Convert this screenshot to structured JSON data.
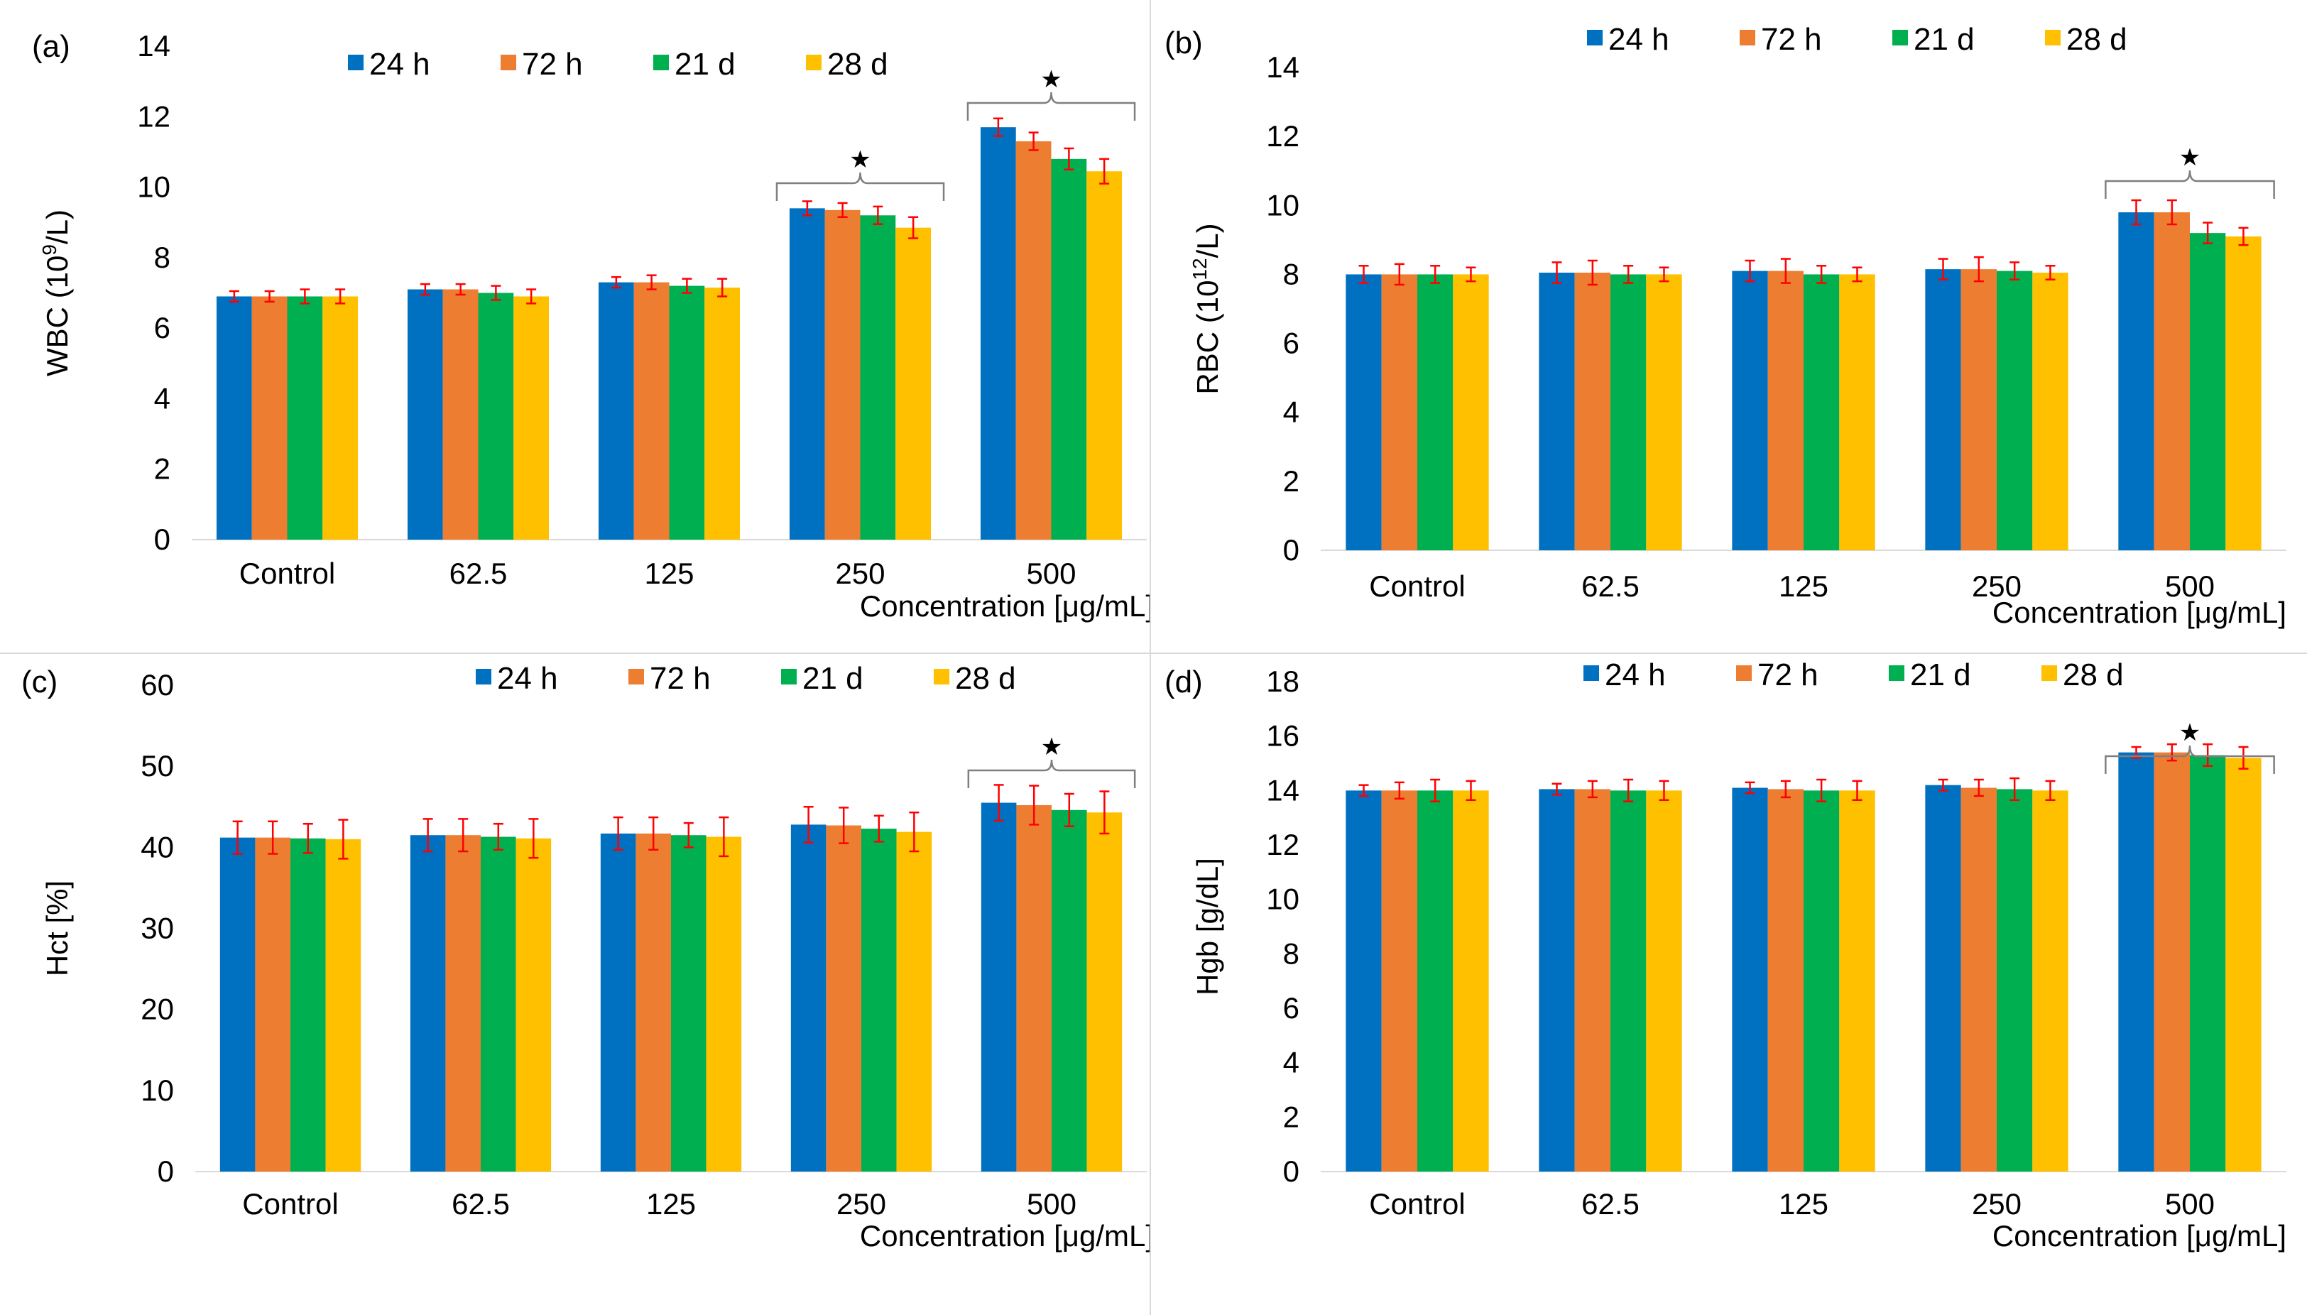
{
  "chart_data": [
    {
      "type": "bar",
      "panel_label": "(a)",
      "ylabel": "WBC (10",
      "ylabel_sup": "9",
      "ylabel_suffix": "/L)",
      "xlabel": "Concentration [μg/mL]",
      "ylim": [
        0,
        14
      ],
      "yticks": [
        0,
        2,
        4,
        6,
        8,
        10,
        12,
        14
      ],
      "categories": [
        "Control",
        "62.5",
        "125",
        "250",
        "500"
      ],
      "series": [
        {
          "name": "24 h",
          "color": "#0070C0",
          "values": [
            6.9,
            7.1,
            7.3,
            9.4,
            11.7
          ],
          "errors": [
            0.15,
            0.15,
            0.15,
            0.2,
            0.25
          ]
        },
        {
          "name": "72 h",
          "color": "#ED7D31",
          "values": [
            6.9,
            7.1,
            7.3,
            9.35,
            11.3
          ],
          "errors": [
            0.15,
            0.15,
            0.2,
            0.2,
            0.25
          ]
        },
        {
          "name": "21 d",
          "color": "#00B050",
          "values": [
            6.9,
            7.0,
            7.2,
            9.2,
            10.8
          ],
          "errors": [
            0.2,
            0.2,
            0.2,
            0.25,
            0.3
          ]
        },
        {
          "name": "28 d",
          "color": "#FFC000",
          "values": [
            6.9,
            6.9,
            7.15,
            8.85,
            10.45
          ],
          "errors": [
            0.2,
            0.2,
            0.25,
            0.3,
            0.35
          ]
        }
      ],
      "significance": [
        {
          "category_index": 3,
          "marker": "★"
        },
        {
          "category_index": 4,
          "marker": "★"
        }
      ]
    },
    {
      "type": "bar",
      "panel_label": "(b)",
      "ylabel": "RBC (10",
      "ylabel_sup": "12",
      "ylabel_suffix": "/L)",
      "xlabel": "Concentration [μg/mL]",
      "ylim": [
        0,
        14
      ],
      "yticks": [
        0,
        2,
        4,
        6,
        8,
        10,
        12,
        14
      ],
      "categories": [
        "Control",
        "62.5",
        "125",
        "250",
        "500"
      ],
      "series": [
        {
          "name": "24 h",
          "color": "#0070C0",
          "values": [
            8.0,
            8.05,
            8.1,
            8.15,
            9.8
          ],
          "errors": [
            0.25,
            0.3,
            0.3,
            0.3,
            0.35
          ]
        },
        {
          "name": "72 h",
          "color": "#ED7D31",
          "values": [
            8.0,
            8.05,
            8.1,
            8.15,
            9.8
          ],
          "errors": [
            0.3,
            0.35,
            0.35,
            0.35,
            0.35
          ]
        },
        {
          "name": "21 d",
          "color": "#00B050",
          "values": [
            8.0,
            8.0,
            8.0,
            8.1,
            9.2
          ],
          "errors": [
            0.25,
            0.25,
            0.25,
            0.25,
            0.3
          ]
        },
        {
          "name": "28 d",
          "color": "#FFC000",
          "values": [
            8.0,
            8.0,
            8.0,
            8.05,
            9.1
          ],
          "errors": [
            0.2,
            0.2,
            0.2,
            0.2,
            0.25
          ]
        }
      ],
      "significance": [
        {
          "category_index": 4,
          "marker": "★"
        }
      ]
    },
    {
      "type": "bar",
      "panel_label": "(c)",
      "ylabel": "Hct [%]",
      "ylabel_sup": "",
      "ylabel_suffix": "",
      "xlabel": "Concentration [μg/mL]",
      "ylim": [
        0,
        60
      ],
      "yticks": [
        0,
        10,
        20,
        30,
        40,
        50,
        60
      ],
      "categories": [
        "Control",
        "62.5",
        "125",
        "250",
        "500"
      ],
      "series": [
        {
          "name": "24 h",
          "color": "#0070C0",
          "values": [
            41.2,
            41.5,
            41.7,
            42.8,
            45.5
          ],
          "errors": [
            2.0,
            2.0,
            2.0,
            2.2,
            2.2
          ]
        },
        {
          "name": "72 h",
          "color": "#ED7D31",
          "values": [
            41.2,
            41.5,
            41.7,
            42.7,
            45.2
          ],
          "errors": [
            2.0,
            2.0,
            2.0,
            2.2,
            2.4
          ]
        },
        {
          "name": "21 d",
          "color": "#00B050",
          "values": [
            41.1,
            41.3,
            41.5,
            42.3,
            44.6
          ],
          "errors": [
            1.8,
            1.6,
            1.5,
            1.6,
            2.0
          ]
        },
        {
          "name": "28 d",
          "color": "#FFC000",
          "values": [
            41.0,
            41.1,
            41.3,
            41.9,
            44.3
          ],
          "errors": [
            2.4,
            2.4,
            2.4,
            2.4,
            2.6
          ]
        }
      ],
      "significance": [
        {
          "category_index": 4,
          "marker": "★"
        }
      ]
    },
    {
      "type": "bar",
      "panel_label": "(d)",
      "ylabel": "Hgb [g/dL]",
      "ylabel_sup": "",
      "ylabel_suffix": "",
      "xlabel": "Concentration [μg/mL]",
      "ylim": [
        0,
        18
      ],
      "yticks": [
        0,
        2,
        4,
        6,
        8,
        10,
        12,
        14,
        16,
        18
      ],
      "categories": [
        "Control",
        "62.5",
        "125",
        "250",
        "500"
      ],
      "series": [
        {
          "name": "24 h",
          "color": "#0070C0",
          "values": [
            14.0,
            14.05,
            14.1,
            14.2,
            15.4
          ],
          "errors": [
            0.2,
            0.2,
            0.2,
            0.2,
            0.2
          ]
        },
        {
          "name": "72 h",
          "color": "#ED7D31",
          "values": [
            14.0,
            14.05,
            14.05,
            14.1,
            15.4
          ],
          "errors": [
            0.3,
            0.3,
            0.3,
            0.3,
            0.3
          ]
        },
        {
          "name": "21 d",
          "color": "#00B050",
          "values": [
            14.0,
            14.0,
            14.0,
            14.05,
            15.3
          ],
          "errors": [
            0.4,
            0.4,
            0.4,
            0.4,
            0.4
          ]
        },
        {
          "name": "28 d",
          "color": "#FFC000",
          "values": [
            14.0,
            14.0,
            14.0,
            14.0,
            15.2
          ],
          "errors": [
            0.35,
            0.35,
            0.35,
            0.35,
            0.4
          ]
        }
      ],
      "significance": [
        {
          "category_index": 4,
          "marker": "★"
        }
      ]
    }
  ]
}
